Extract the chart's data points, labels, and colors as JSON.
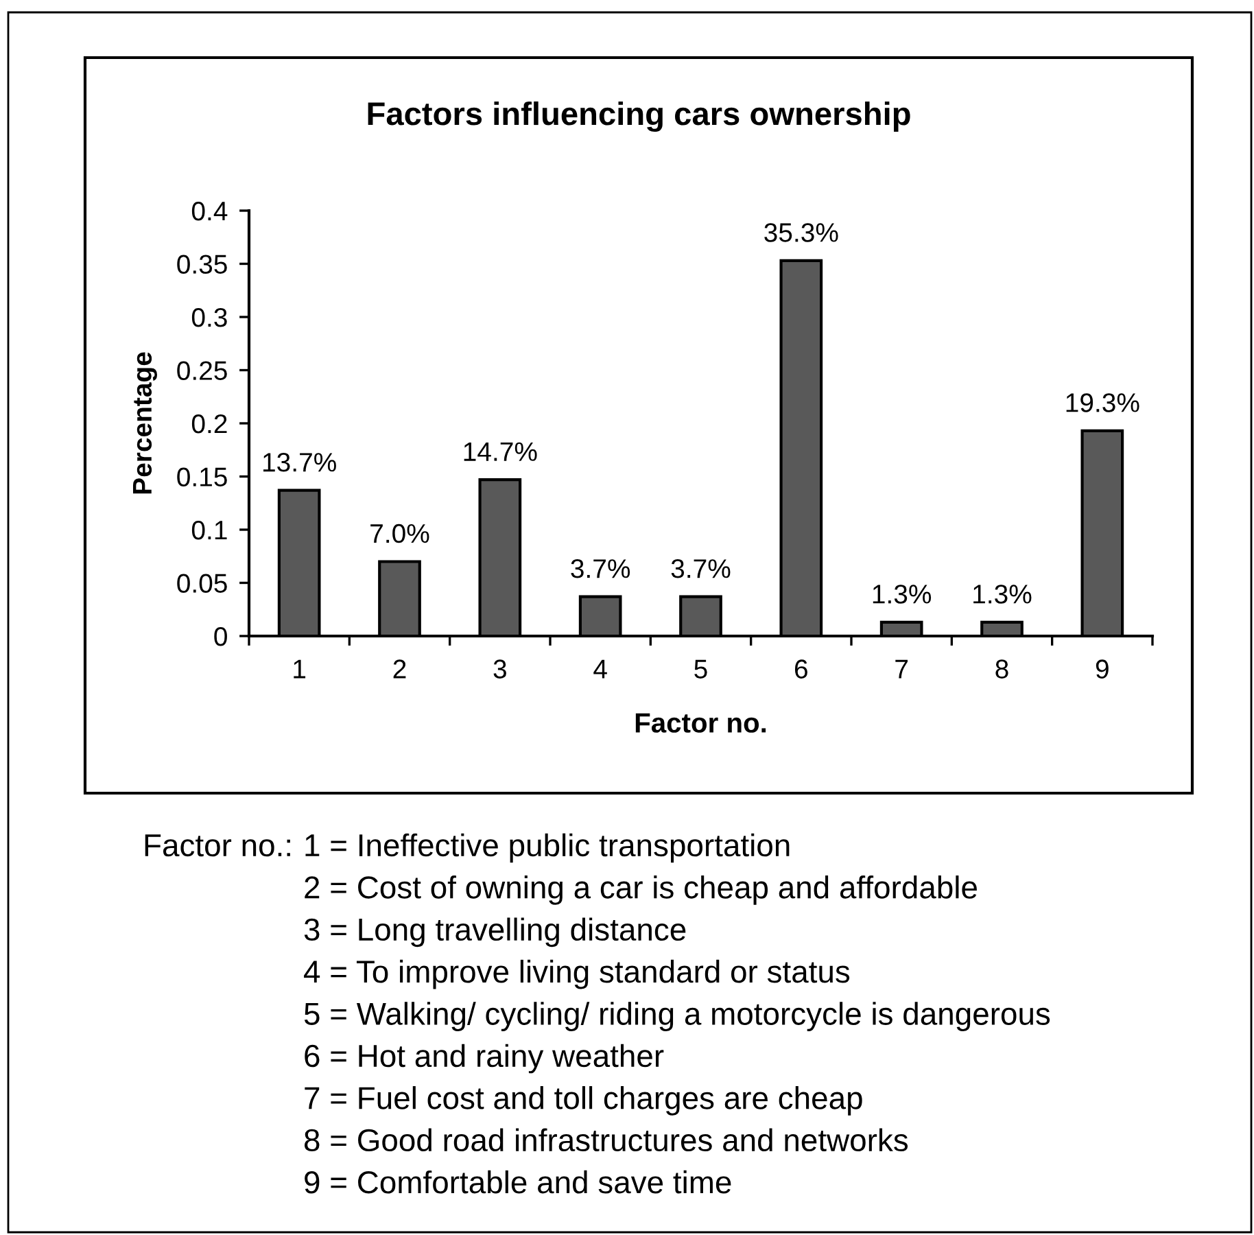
{
  "chart_data": {
    "type": "bar",
    "title": "Factors influencing cars ownership",
    "xlabel": "Factor no.",
    "ylabel": "Percentage",
    "categories": [
      "1",
      "2",
      "3",
      "4",
      "5",
      "6",
      "7",
      "8",
      "9"
    ],
    "values": [
      0.137,
      0.07,
      0.147,
      0.037,
      0.037,
      0.353,
      0.013,
      0.013,
      0.193
    ],
    "value_labels": [
      "13.7%",
      "7.0%",
      "14.7%",
      "3.7%",
      "3.7%",
      "35.3%",
      "1.3%",
      "1.3%",
      "19.3%"
    ],
    "color": "#595959",
    "ylim": [
      0,
      0.4
    ],
    "yticks": [
      0,
      0.05,
      0.1,
      0.15,
      0.2,
      0.25,
      0.3,
      0.35,
      0.4
    ],
    "annotations": [
      "Factor no.:",
      "1 = Ineffective public transportation",
      "2 = Cost of owning a car is cheap and affordable",
      "3 = Long travelling distance",
      "4 = To improve living standard or status",
      "5 = Walking/ cycling/ riding a motorcycle is dangerous",
      "6 = Hot and rainy weather",
      "7 = Fuel cost and toll charges are cheap",
      "8 = Good road infrastructures and networks",
      "9 = Comfortable and save time"
    ]
  }
}
